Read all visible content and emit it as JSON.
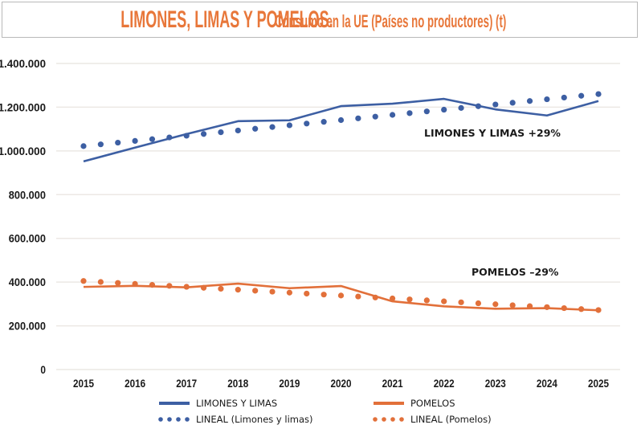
{
  "chart_data": {
    "type": "line",
    "title": "LIMONES, LIMAS Y POMELOS.",
    "subtitle": "Consumo en la UE (Países no productores) (t)",
    "xlabel": "",
    "ylabel": "",
    "x": [
      "2015",
      "2016",
      "2017",
      "2018",
      "2019",
      "2020",
      "2021",
      "2022",
      "2023",
      "2024",
      "2025"
    ],
    "ylim": [
      0,
      1400000
    ],
    "yticks": [
      0,
      200000,
      400000,
      600000,
      800000,
      1000000,
      1200000,
      1400000
    ],
    "ytick_labels": [
      "0",
      "200.000",
      "400.000",
      "600.000",
      "800.000",
      "1.000.000",
      "1.200.000",
      "1.400.000"
    ],
    "grid": true,
    "legend_position": "bottom",
    "series": [
      {
        "name": "LIMONES Y LIMAS",
        "style": "solid",
        "color": "#3d5fa3",
        "values": [
          952000,
          1015000,
          1077000,
          1136000,
          1140000,
          1205000,
          1216000,
          1238000,
          1190000,
          1162000,
          1228000
        ]
      },
      {
        "name": "POMELOS",
        "style": "solid",
        "color": "#e2703a",
        "values": [
          378000,
          383000,
          376000,
          393000,
          372000,
          382000,
          312000,
          289000,
          278000,
          281000,
          271000
        ]
      },
      {
        "name": "LINEAL (Limones y limas)",
        "style": "dotted",
        "trendline": "linear",
        "color": "#3d5fa3",
        "values": [
          1022000,
          1046000,
          1070000,
          1093000,
          1117000,
          1141000,
          1165000,
          1189000,
          1212000,
          1236000,
          1260000
        ]
      },
      {
        "name": "LINEAL (Pomelos)",
        "style": "dotted",
        "trendline": "linear",
        "color": "#e2703a",
        "values": [
          405000,
          392000,
          378000,
          365000,
          352000,
          339000,
          325000,
          312000,
          299000,
          285000,
          272000
        ]
      }
    ],
    "annotations": [
      {
        "text": "LIMONES Y LIMAS +29%",
        "series": "LIMONES Y LIMAS"
      },
      {
        "text": "POMELOS –29%",
        "series": "POMELOS"
      }
    ],
    "legend": [
      {
        "label": "LIMONES Y LIMAS",
        "style": "solid",
        "color": "#3d5fa3"
      },
      {
        "label": "POMELOS",
        "style": "solid",
        "color": "#e2703a"
      },
      {
        "label": "LINEAL (Limones y limas)",
        "style": "dotted",
        "color": "#3d5fa3"
      },
      {
        "label": "LINEAL (Pomelos)",
        "style": "dotted",
        "color": "#e2703a"
      }
    ]
  },
  "header": {
    "title_main": "LIMONES, LIMAS Y POMELOS.",
    "title_sub": "Consumo en la UE (Países no productores) (t)",
    "title_color": "#e8773a"
  },
  "colors": {
    "gridline": "#ece8e4",
    "text": "#1a1a1a",
    "border": "#b9b9b9"
  }
}
